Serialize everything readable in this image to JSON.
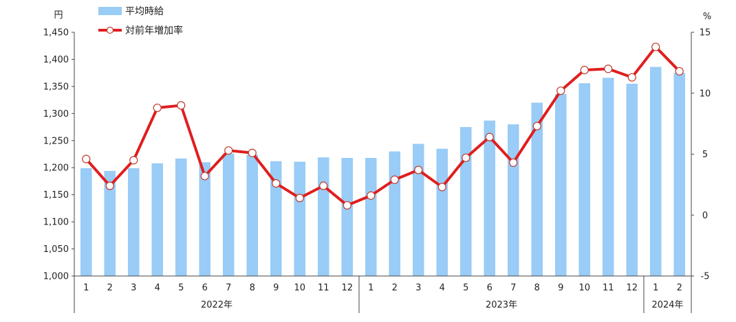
{
  "chart_data": {
    "type": "bar",
    "left_unit": "円",
    "right_unit": "%",
    "y_left_ticks": [
      "1,000",
      "1,050",
      "1,100",
      "1,150",
      "1,200",
      "1,250",
      "1,300",
      "1,350",
      "1,400",
      "1,450"
    ],
    "y_right_ticks": [
      "-5",
      "0",
      "5",
      "10",
      "15"
    ],
    "y_left_lim": [
      1000,
      1450
    ],
    "y_right_lim": [
      -5,
      15
    ],
    "categories": [
      "1",
      "2",
      "3",
      "4",
      "5",
      "6",
      "7",
      "8",
      "9",
      "10",
      "11",
      "12",
      "1",
      "2",
      "3",
      "4",
      "5",
      "6",
      "7",
      "8",
      "9",
      "10",
      "11",
      "12",
      "1",
      "2"
    ],
    "year_groups": [
      {
        "label": "2022年",
        "start": 0,
        "count": 12
      },
      {
        "label": "2023年",
        "start": 12,
        "count": 12
      },
      {
        "label": "2024年",
        "start": 24,
        "count": 2
      }
    ],
    "series": [
      {
        "name": "平均時給",
        "kind": "bar",
        "axis": "left",
        "color": "#99ccf6",
        "values": [
          1199,
          1194,
          1199,
          1208,
          1217,
          1210,
          1226,
          1224,
          1212,
          1211,
          1219,
          1218,
          1218,
          1230,
          1244,
          1235,
          1275,
          1287,
          1280,
          1320,
          1336,
          1356,
          1366,
          1355,
          1386,
          1375
        ]
      },
      {
        "name": "対前年増加率",
        "kind": "line",
        "axis": "right",
        "color": "#e01e1e",
        "values": [
          4.6,
          2.4,
          4.5,
          8.8,
          9.0,
          3.2,
          5.3,
          5.1,
          2.6,
          1.4,
          2.4,
          0.8,
          1.6,
          2.9,
          3.7,
          2.3,
          4.7,
          6.4,
          4.3,
          7.3,
          10.2,
          11.9,
          12.0,
          11.3,
          13.8,
          11.8
        ]
      }
    ]
  }
}
